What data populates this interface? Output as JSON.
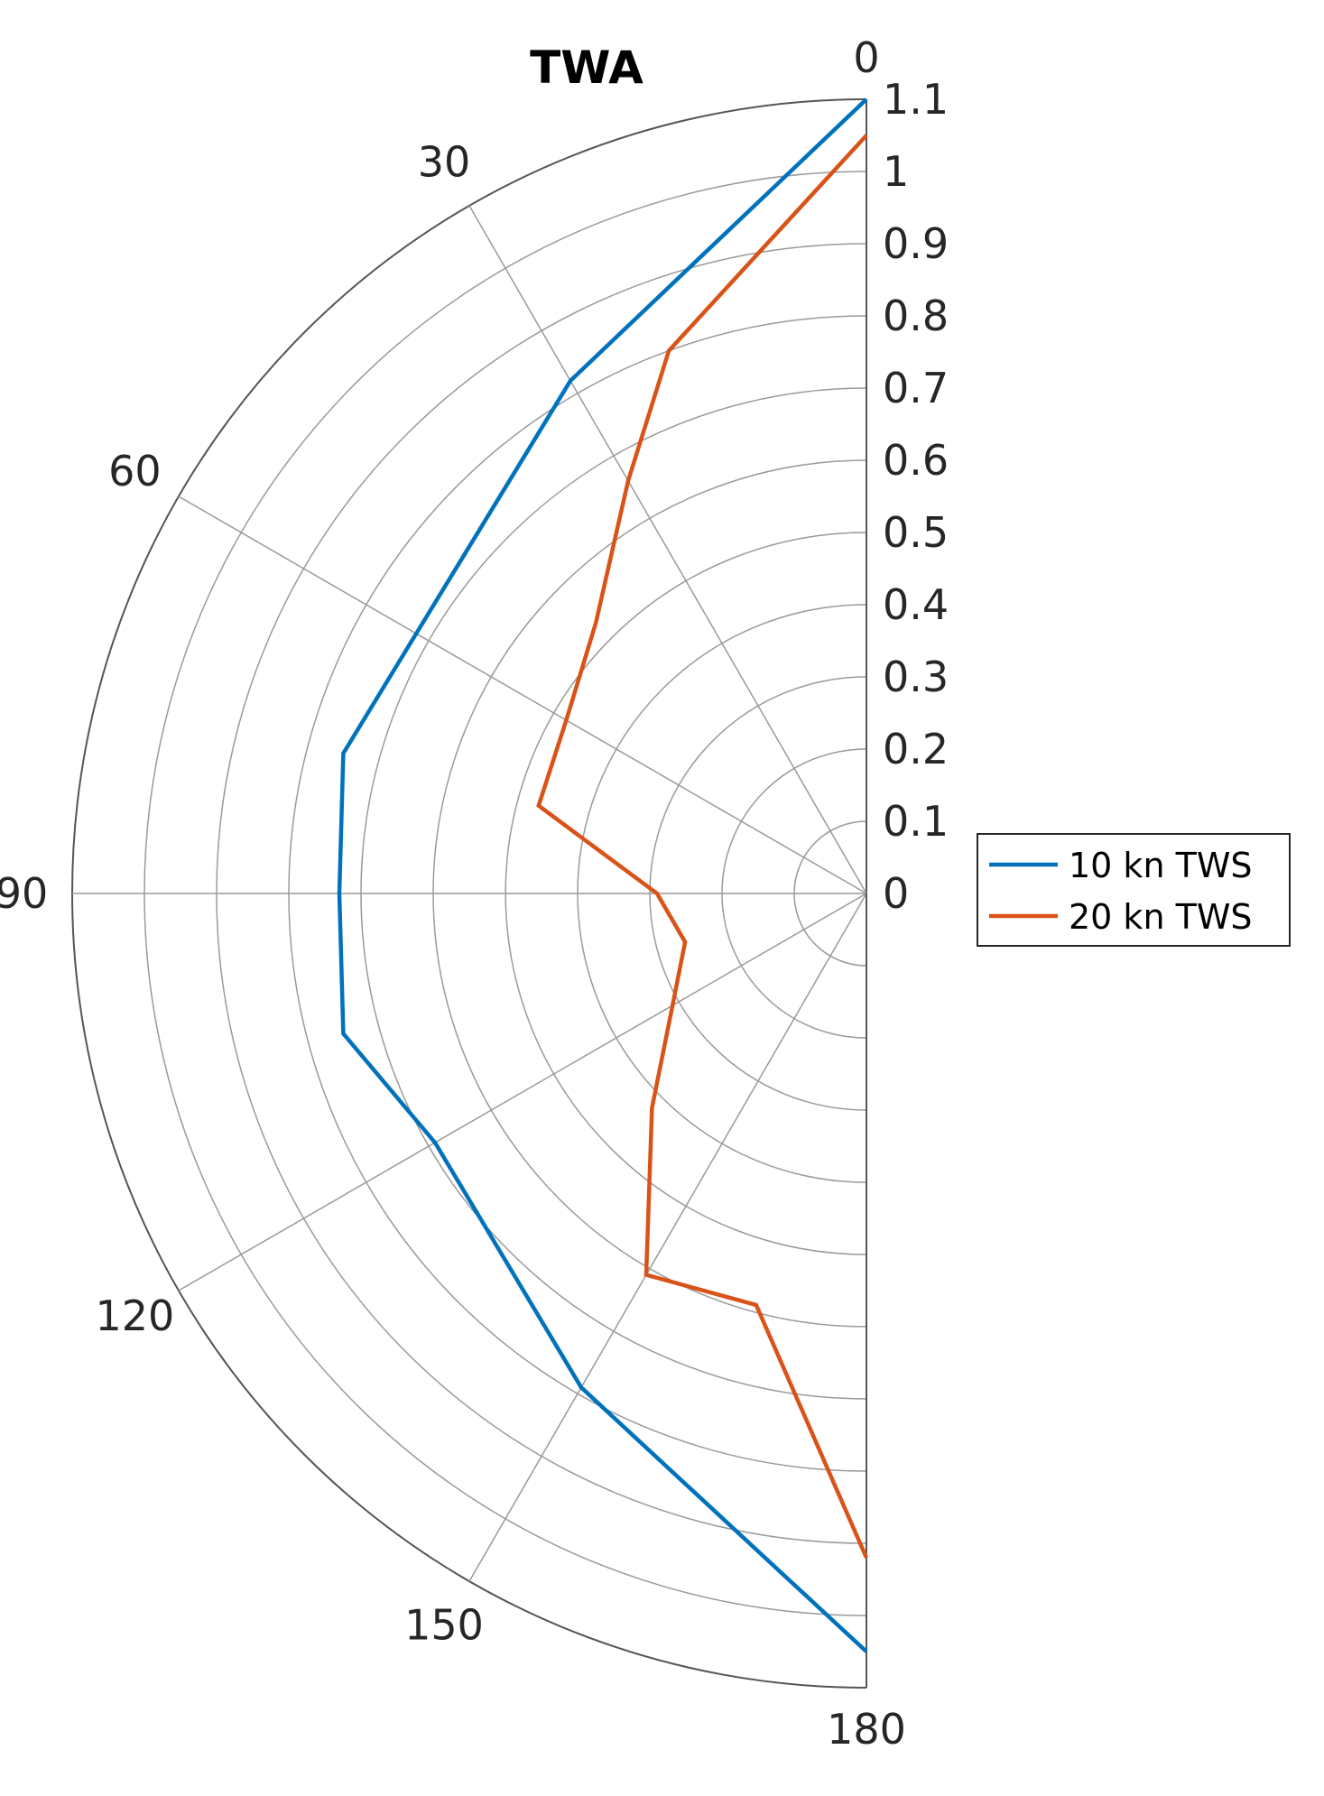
{
  "chart_data": {
    "type": "polar-line",
    "title": "TWA",
    "theta_ticks": [
      0,
      30,
      60,
      90,
      120,
      150,
      180
    ],
    "r_ticks": [
      0,
      0.1,
      0.2,
      0.3,
      0.4,
      0.5,
      0.6,
      0.7,
      0.8,
      0.9,
      1,
      1.1
    ],
    "r_tick_labels": [
      "0",
      "0.1",
      "0.2",
      "0.3",
      "0.4",
      "0.5",
      "0.6",
      "0.7",
      "0.8",
      "0.9",
      "1",
      "1.1"
    ],
    "theta_tick_labels": [
      "0",
      "30",
      "60",
      "90",
      "120",
      "150",
      "180"
    ],
    "rlim": [
      0,
      1.1
    ],
    "thetalim": [
      0,
      180
    ],
    "theta_direction": "clockwise",
    "theta_zero_location": "top",
    "legend_position": "right",
    "series": [
      {
        "name": "10 kn TWS",
        "color": "#0072BD",
        "theta": [
          0,
          30,
          60,
          75,
          90,
          105,
          120,
          150,
          180
        ],
        "r": [
          1.1,
          0.82,
          0.72,
          0.75,
          0.73,
          0.75,
          0.69,
          0.79,
          1.05
        ]
      },
      {
        "name": "20 kn TWS",
        "color": "#D95319",
        "theta": [
          0,
          20,
          30,
          45,
          60,
          75,
          90,
          105,
          120,
          135,
          150,
          165,
          180
        ],
        "r": [
          1.05,
          0.8,
          0.66,
          0.53,
          0.48,
          0.47,
          0.29,
          0.26,
          0.31,
          0.42,
          0.61,
          0.59,
          0.92
        ]
      }
    ]
  }
}
